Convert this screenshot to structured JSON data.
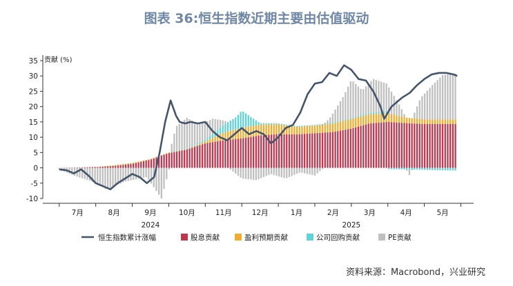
{
  "chart_data": {
    "type": "area",
    "title": "图表 36:恒生指数近期主要由估值驱动",
    "ylabel": "贡献 (%)",
    "ylim": [
      -10,
      35
    ],
    "yticks": [
      -10,
      -5,
      0,
      5,
      10,
      15,
      20,
      25,
      30,
      35
    ],
    "months": [
      "7月",
      "8月",
      "9月",
      "10月",
      "11月",
      "12月",
      "1月",
      "2月",
      "3月",
      "4月",
      "5月"
    ],
    "years": [
      {
        "label": "2024",
        "month_index": 2.5
      },
      {
        "label": "2025",
        "month_index": 8.0
      }
    ],
    "legend": [
      "恒生指数累计涨幅",
      "股息贡献",
      "盈利预期贡献",
      "公司回购贡献",
      "PE贡献"
    ],
    "colors": {
      "line": "#44546a",
      "dividend": "#c0364f",
      "earnings": "#f0ac2e",
      "buyback": "#5fd3d8",
      "pe": "#bfbfbf",
      "title": "#6f87a6"
    },
    "series": {
      "dividend": {
        "name": "股息贡献",
        "x": [
          0,
          0.5,
          1,
          1.5,
          2,
          2.5,
          2.8,
          3,
          3.5,
          4,
          4.5,
          5,
          5.5,
          6,
          6.5,
          7,
          7.5,
          8,
          8.5,
          9,
          9.5,
          10,
          10.9
        ],
        "values": [
          0,
          0.1,
          0.3,
          0.6,
          1.3,
          2.7,
          4,
          4.8,
          6,
          8,
          9,
          9.6,
          10.6,
          11,
          10.9,
          11.3,
          11.7,
          12.8,
          14.5,
          15,
          14.6,
          14.3,
          14.3
        ]
      },
      "earnings": {
        "name": "盈利预期贡献",
        "x": [
          0,
          1,
          1.6,
          2,
          2.5,
          2.8,
          3,
          3.5,
          4,
          4.5,
          4.85,
          5,
          5.3,
          5.5,
          6,
          6.5,
          7,
          7.5,
          8,
          8.5,
          9,
          9.5,
          10,
          10.9
        ],
        "values": [
          0,
          0,
          0.3,
          0.3,
          0.2,
          0.2,
          0.2,
          0.1,
          0.6,
          2.5,
          3.2,
          3.5,
          3.5,
          3.5,
          3.2,
          2.5,
          2.5,
          2.8,
          3.2,
          3,
          2.8,
          1.8,
          1.5,
          1.5
        ]
      },
      "buyback": {
        "name": "公司回购贡献",
        "x": [
          0,
          2,
          3,
          3.5,
          4,
          4.5,
          4.85,
          5,
          5.3,
          5.5,
          6,
          7,
          8,
          9,
          9,
          10.9
        ],
        "values": [
          0,
          0,
          0,
          0.2,
          0.5,
          2.5,
          4,
          5.6,
          2.5,
          0.5,
          0.3,
          0.2,
          0.3,
          0.6,
          -0.4,
          -0.9
        ]
      },
      "pe": {
        "name": "PE贡献",
        "x": [
          0,
          0.4,
          0.9,
          1.3,
          1.8,
          2.4,
          2.8,
          3.2,
          3.5,
          3.8,
          4.2,
          4.6,
          5.0,
          5.4,
          5.8,
          6.2,
          6.6,
          7.0,
          7.4,
          7.8,
          8.0,
          8.3,
          8.6,
          9.0,
          9.3,
          9.6,
          9.9,
          10.2,
          10.5,
          10.9
        ],
        "values": [
          -0.5,
          -2.5,
          -4.5,
          -7,
          -4.5,
          -3,
          -10,
          8,
          10,
          6.5,
          5,
          0.3,
          -3.5,
          -4,
          -2,
          -3.5,
          -1.5,
          -2.5,
          1.5,
          8,
          12.5,
          8,
          11,
          9,
          4,
          -2,
          7,
          11,
          14.5,
          15
        ]
      },
      "hsi_cum": {
        "name": "恒生指数累计涨幅",
        "x": [
          0,
          0.2,
          0.4,
          0.6,
          0.8,
          1.0,
          1.2,
          1.4,
          1.6,
          1.8,
          2.0,
          2.2,
          2.4,
          2.6,
          2.75,
          2.9,
          3.05,
          3.2,
          3.3,
          3.45,
          3.6,
          3.8,
          4.0,
          4.2,
          4.4,
          4.6,
          4.8,
          5.0,
          5.2,
          5.4,
          5.6,
          5.8,
          6.0,
          6.2,
          6.4,
          6.6,
          6.8,
          7.0,
          7.2,
          7.4,
          7.6,
          7.8,
          8.0,
          8.2,
          8.4,
          8.6,
          8.8,
          8.9,
          9.0,
          9.1,
          9.2,
          9.4,
          9.6,
          9.8,
          10.0,
          10.2,
          10.4,
          10.6,
          10.8,
          10.9
        ],
        "values": [
          -0.5,
          -0.8,
          -1.8,
          -0.5,
          -2.5,
          -5,
          -6,
          -7,
          -5,
          -3.5,
          -2,
          -3,
          -5,
          -3,
          5,
          15,
          22,
          17,
          15,
          14.5,
          15,
          14.5,
          15,
          12,
          10,
          9,
          11,
          13,
          11,
          12,
          11,
          8,
          10,
          13,
          14,
          18,
          24,
          27.5,
          28,
          31,
          30,
          33.5,
          32,
          29,
          28.5,
          25,
          20,
          16,
          18,
          20,
          21,
          23,
          24.5,
          27,
          29,
          30.5,
          31,
          31,
          30.5,
          30
        ]
      }
    }
  },
  "source": "资料来源：Macrobond，兴业研究"
}
